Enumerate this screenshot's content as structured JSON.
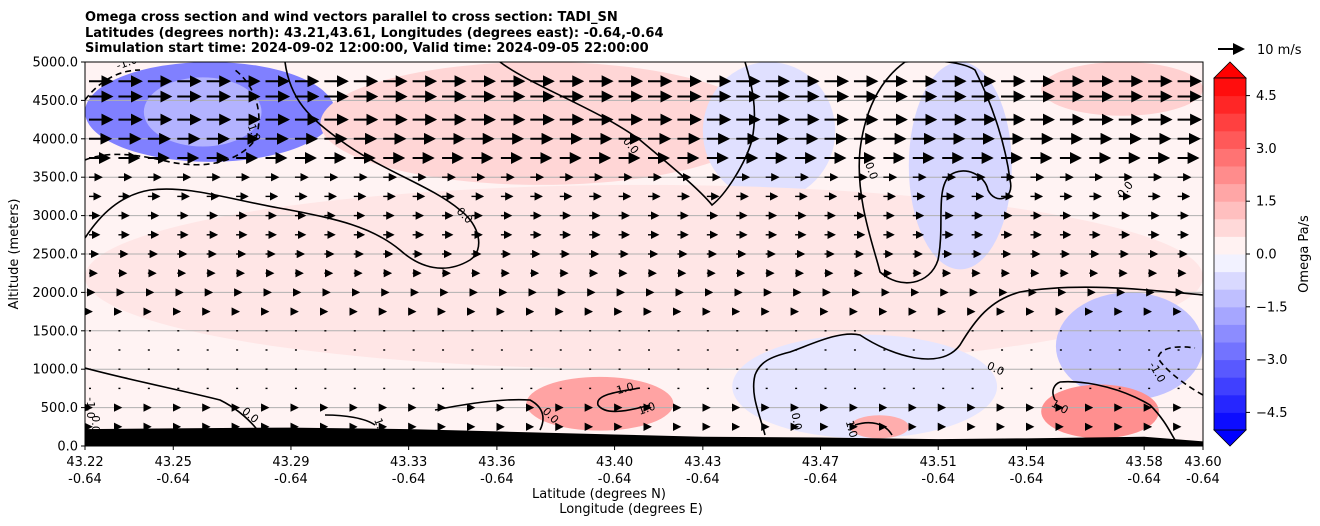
{
  "chart_data": {
    "type": "heatmap",
    "title": [
      "Omega cross section and wind vectors parallel to cross section: TADI_SN",
      "Latitudes (degrees north): 43.21,43.61, Longitudes (degrees east): -0.64,-0.64",
      "Simulation start time: 2024-09-02 12:00:00, Valid time: 2024-09-05 22:00:00"
    ],
    "xlabel": "Latitude (degrees N)",
    "xlabel2": "Longitude (degrees E)",
    "ylabel": "Altitude (meters)",
    "x_ticks": [
      {
        "lat": "43.22",
        "lon": "-0.64"
      },
      {
        "lat": "43.25",
        "lon": "-0.64"
      },
      {
        "lat": "43.29",
        "lon": "-0.64"
      },
      {
        "lat": "43.33",
        "lon": "-0.64"
      },
      {
        "lat": "43.36",
        "lon": "-0.64"
      },
      {
        "lat": "43.40",
        "lon": "-0.64"
      },
      {
        "lat": "43.43",
        "lon": "-0.64"
      },
      {
        "lat": "43.47",
        "lon": "-0.64"
      },
      {
        "lat": "43.51",
        "lon": "-0.64"
      },
      {
        "lat": "43.54",
        "lon": "-0.64"
      },
      {
        "lat": "43.58",
        "lon": "-0.64"
      },
      {
        "lat": "43.60",
        "lon": "-0.64"
      }
    ],
    "xlim": [
      43.22,
      43.6
    ],
    "y_ticks": [
      "0.0",
      "500.0",
      "1000.0",
      "1500.0",
      "2000.0",
      "2500.0",
      "3000.0",
      "3500.0",
      "4000.0",
      "4500.0",
      "5000.0"
    ],
    "ylim": [
      0,
      5000
    ],
    "grid": "horizontal",
    "colorbar": {
      "label": "Omega Pa/s",
      "range": [
        -5,
        5
      ],
      "ticks": [
        "4.5",
        "3.0",
        "1.5",
        "0.0",
        "−1.5",
        "−3.0",
        "−4.5"
      ],
      "tick_values": [
        4.5,
        3.0,
        1.5,
        0.0,
        -1.5,
        -3.0,
        -4.5
      ],
      "colors": {
        "negative": "#0000ff",
        "zero": "#ffffff",
        "positive": "#ff0000"
      },
      "extend": "both"
    },
    "quiver_key": {
      "label": "10 m/s"
    },
    "contour_labels": [
      "-1.0",
      "-1.0",
      "0.0",
      "0.0",
      "0.0",
      "0.0",
      "0.0",
      "-1.0",
      "1.0",
      "1.0",
      "1.0",
      "0.0",
      "0.0",
      "1.0",
      "0.0",
      "-1.0",
      "1.0",
      "0.0"
    ],
    "terrain": {
      "lat": [
        43.22,
        43.25,
        43.29,
        43.33,
        43.36,
        43.4,
        43.43,
        43.47,
        43.51,
        43.54,
        43.58,
        43.6
      ],
      "alt": [
        220,
        230,
        240,
        220,
        190,
        150,
        120,
        110,
        90,
        100,
        120,
        60
      ]
    },
    "omega_regions": [
      {
        "value": -2.5,
        "lat": [
          43.22,
          43.305
        ],
        "alt": [
          3700,
          5000
        ]
      },
      {
        "value": -1.5,
        "lat": [
          43.24,
          43.28
        ],
        "alt": [
          3900,
          4800
        ]
      },
      {
        "value": 0.8,
        "lat": [
          43.3,
          43.45
        ],
        "alt": [
          3400,
          5000
        ]
      },
      {
        "value": -0.6,
        "lat": [
          43.43,
          43.475
        ],
        "alt": [
          3200,
          5000
        ]
      },
      {
        "value": 0.5,
        "lat": [
          43.22,
          43.6
        ],
        "alt": [
          1000,
          3400
        ]
      },
      {
        "value": -0.8,
        "lat": [
          43.5,
          43.535
        ],
        "alt": [
          2300,
          5000
        ]
      },
      {
        "value": 0.9,
        "lat": [
          43.545,
          43.6
        ],
        "alt": [
          4300,
          5000
        ]
      },
      {
        "value": -1.2,
        "lat": [
          43.55,
          43.6
        ],
        "alt": [
          600,
          2000
        ]
      },
      {
        "value": -0.5,
        "lat": [
          43.44,
          43.53
        ],
        "alt": [
          100,
          1450
        ]
      },
      {
        "value": 1.8,
        "lat": [
          43.37,
          43.42
        ],
        "alt": [
          200,
          900
        ]
      },
      {
        "value": 2.2,
        "lat": [
          43.545,
          43.585
        ],
        "alt": [
          100,
          800
        ]
      },
      {
        "value": 1.6,
        "lat": [
          43.48,
          43.5
        ],
        "alt": [
          100,
          400
        ]
      }
    ],
    "wind": {
      "description": "vectors parallel to the cross section, stronger aloft",
      "levels": [
        4750,
        4550,
        4250,
        4000,
        3750,
        3500,
        3250,
        3000,
        2750,
        2500,
        2250,
        2000,
        1750,
        1500,
        1250,
        1000,
        750,
        500,
        250
      ],
      "speeds_m_s": [
        9,
        9,
        9,
        8.5,
        8,
        5,
        4.5,
        4,
        4,
        3.5,
        3,
        2,
        1,
        0.5,
        0.5,
        0.5,
        0.5,
        1,
        1
      ]
    }
  }
}
